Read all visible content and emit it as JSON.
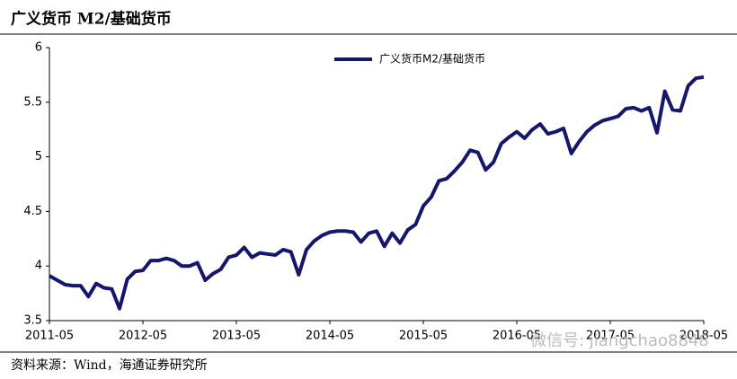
{
  "chart_data": {
    "type": "line",
    "title": "广义货币 M2/基础货币",
    "source": "资料来源：Wind，海通证券研究所",
    "watermark": "微信号: jiangchao8848",
    "x": [
      "2011-05",
      "2011-06",
      "2011-07",
      "2011-08",
      "2011-09",
      "2011-10",
      "2011-11",
      "2011-12",
      "2012-01",
      "2012-02",
      "2012-03",
      "2012-04",
      "2012-05",
      "2012-06",
      "2012-07",
      "2012-08",
      "2012-09",
      "2012-10",
      "2012-11",
      "2012-12",
      "2013-01",
      "2013-02",
      "2013-03",
      "2013-04",
      "2013-05",
      "2013-06",
      "2013-07",
      "2013-08",
      "2013-09",
      "2013-10",
      "2013-11",
      "2013-12",
      "2014-01",
      "2014-02",
      "2014-03",
      "2014-04",
      "2014-05",
      "2014-06",
      "2014-07",
      "2014-08",
      "2014-09",
      "2014-10",
      "2014-11",
      "2014-12",
      "2015-01",
      "2015-02",
      "2015-03",
      "2015-04",
      "2015-05",
      "2015-06",
      "2015-07",
      "2015-08",
      "2015-09",
      "2015-10",
      "2015-11",
      "2015-12",
      "2016-01",
      "2016-02",
      "2016-03",
      "2016-04",
      "2016-05",
      "2016-06",
      "2016-07",
      "2016-08",
      "2016-09",
      "2016-10",
      "2016-11",
      "2016-12",
      "2017-01",
      "2017-02",
      "2017-03",
      "2017-04",
      "2017-05",
      "2017-06",
      "2017-07",
      "2017-08",
      "2017-09",
      "2017-10",
      "2017-11",
      "2017-12",
      "2018-01",
      "2018-02",
      "2018-03",
      "2018-04",
      "2018-05"
    ],
    "series": [
      {
        "name": "广义货币M2/基础货币",
        "color": "#16166b",
        "values": [
          3.91,
          3.87,
          3.83,
          3.82,
          3.82,
          3.72,
          3.84,
          3.8,
          3.79,
          3.61,
          3.88,
          3.95,
          3.96,
          4.05,
          4.05,
          4.07,
          4.05,
          4.0,
          4.0,
          4.03,
          3.87,
          3.93,
          3.97,
          4.08,
          4.1,
          4.17,
          4.08,
          4.12,
          4.11,
          4.1,
          4.15,
          4.13,
          3.92,
          4.15,
          4.23,
          4.28,
          4.31,
          4.32,
          4.32,
          4.31,
          4.22,
          4.3,
          4.32,
          4.18,
          4.3,
          4.21,
          4.33,
          4.38,
          4.55,
          4.63,
          4.78,
          4.8,
          4.87,
          4.95,
          5.06,
          5.04,
          4.88,
          4.95,
          5.12,
          5.18,
          5.23,
          5.17,
          5.25,
          5.3,
          5.21,
          5.23,
          5.26,
          5.03,
          5.14,
          5.23,
          5.29,
          5.33,
          5.35,
          5.37,
          5.44,
          5.45,
          5.42,
          5.45,
          5.22,
          5.6,
          5.43,
          5.42,
          5.65,
          5.72,
          5.73
        ]
      }
    ],
    "xticks": [
      "2011-05",
      "2012-05",
      "2013-05",
      "2014-05",
      "2015-05",
      "2016-05",
      "2017-05",
      "2018-05"
    ],
    "ylim": [
      3.5,
      6.0
    ],
    "yticks": [
      3.5,
      4.0,
      4.5,
      5.0,
      5.5,
      6.0
    ],
    "legend": "top"
  }
}
